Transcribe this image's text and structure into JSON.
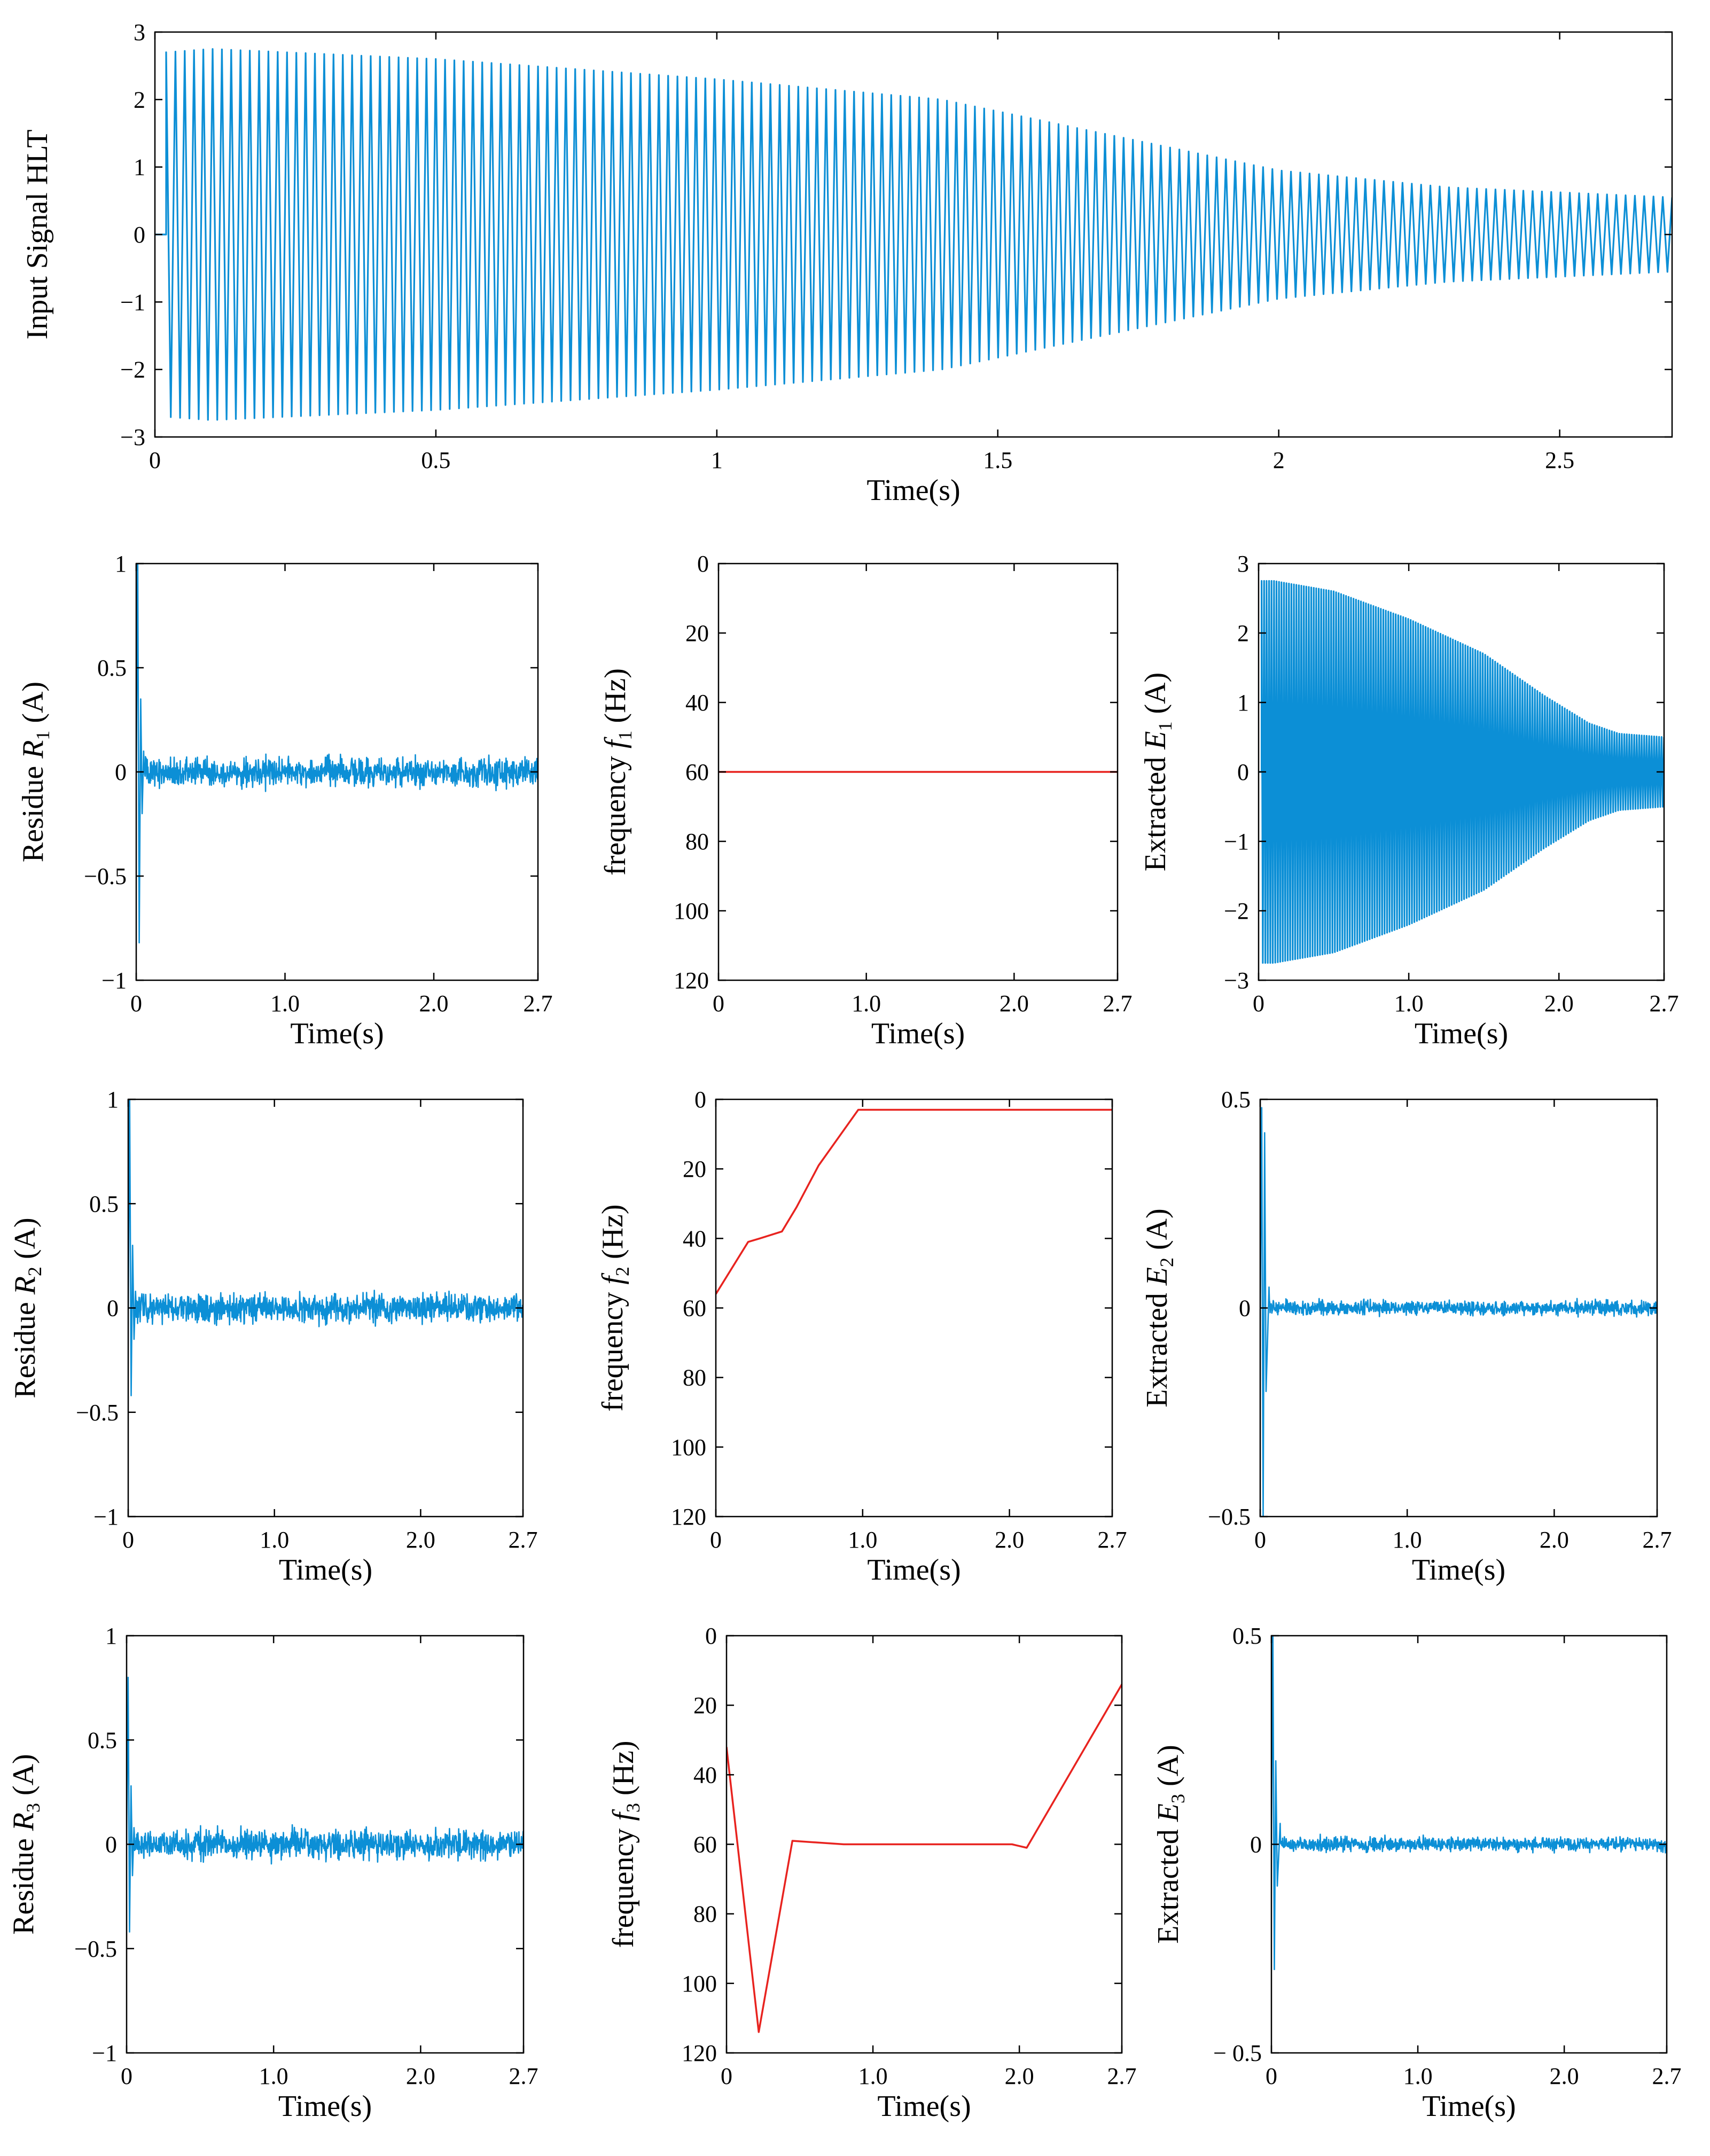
{
  "chart_data": [
    {
      "id": "input",
      "type": "line",
      "kind": "oscillation",
      "color": "#0c8fd6",
      "xlabel": "Time(s)",
      "ylabel_parts": [
        "Input Signal HLT"
      ],
      "xlim": [
        0,
        2.7
      ],
      "ylim": [
        -3,
        3
      ],
      "invert_y": false,
      "xticks": [
        0,
        0.5,
        1,
        1.5,
        2,
        2.5
      ],
      "xtick_labels": [
        "0",
        "0.5",
        "1",
        "1.5",
        "2",
        "2.5"
      ],
      "yticks": [
        -3,
        -2,
        -1,
        0,
        1,
        2,
        3
      ],
      "ytick_labels": [
        "−3",
        "−2",
        "−1",
        "0",
        "1",
        "2",
        "3"
      ],
      "envelope": {
        "t": [
          0,
          0.02,
          0.1,
          0.5,
          1.0,
          1.4,
          1.8,
          2.0,
          2.3,
          2.7
        ],
        "amp": [
          0,
          2.7,
          2.75,
          2.6,
          2.3,
          2.0,
          1.3,
          0.95,
          0.7,
          0.55
        ]
      },
      "cycles": 162
    },
    {
      "id": "r1",
      "type": "line",
      "kind": "residue",
      "color": "#0c8fd6",
      "xlabel": "Time(s)",
      "ylabel_parts": [
        "Residue ",
        "R",
        "1",
        " (A)"
      ],
      "xlim": [
        0,
        2.7
      ],
      "ylim": [
        -1,
        1
      ],
      "invert_y": false,
      "xticks": [
        0,
        1.0,
        2.0,
        2.7
      ],
      "xtick_labels": [
        "0",
        "1.0",
        "2.0",
        "2.7"
      ],
      "yticks": [
        -1,
        -0.5,
        0,
        0.5,
        1
      ],
      "ytick_labels": [
        "−1",
        "−0.5",
        "0",
        "0.5",
        "1"
      ],
      "transient": {
        "t": [
          0,
          0.01,
          0.02,
          0.03,
          0.04,
          0.05
        ],
        "v": [
          0,
          1.0,
          -0.82,
          0.35,
          -0.2,
          0.1
        ]
      },
      "noise": 0.1
    },
    {
      "id": "f1",
      "type": "line",
      "kind": "frequency",
      "color": "#e8231f",
      "xlabel": "Time(s)",
      "ylabel_parts": [
        "frequency ",
        "f",
        "1",
        " (Hz)"
      ],
      "xlim": [
        0,
        2.7
      ],
      "ylim": [
        0,
        120
      ],
      "invert_y": true,
      "xticks": [
        0,
        1.0,
        2.0,
        2.7
      ],
      "xtick_labels": [
        "0",
        "1.0",
        "2.0",
        "2.7"
      ],
      "yticks": [
        0,
        20,
        40,
        60,
        80,
        100,
        120
      ],
      "ytick_labels": [
        "0",
        "20",
        "40",
        "60",
        "80",
        "100",
        "120"
      ],
      "x": [
        0,
        2.7
      ],
      "y": [
        60,
        60
      ]
    },
    {
      "id": "e1",
      "type": "line",
      "kind": "oscillation",
      "color": "#0c8fd6",
      "xlabel": "Time(s)",
      "ylabel_parts": [
        "Extracted ",
        "E",
        "1",
        " (A)"
      ],
      "xlim": [
        0,
        2.7
      ],
      "ylim": [
        -3,
        3
      ],
      "invert_y": false,
      "xticks": [
        0,
        1.0,
        2.0,
        2.7
      ],
      "xtick_labels": [
        "0",
        "1.0",
        "2.0",
        "2.7"
      ],
      "yticks": [
        -3,
        -2,
        -1,
        0,
        1,
        2,
        3
      ],
      "ytick_labels": [
        "−3",
        "−2",
        "−1",
        "0",
        "1",
        "2",
        "3"
      ],
      "envelope": {
        "t": [
          0,
          0.02,
          0.1,
          0.5,
          1.0,
          1.5,
          1.9,
          2.2,
          2.4,
          2.7
        ],
        "amp": [
          0,
          2.75,
          2.75,
          2.6,
          2.2,
          1.7,
          1.1,
          0.7,
          0.55,
          0.5
        ]
      },
      "cycles": 162
    },
    {
      "id": "r2",
      "type": "line",
      "kind": "residue",
      "color": "#0c8fd6",
      "xlabel": "Time(s)",
      "ylabel_parts": [
        "Residue ",
        "R",
        "2",
        " (A)"
      ],
      "xlim": [
        0,
        2.7
      ],
      "ylim": [
        -1,
        1
      ],
      "invert_y": false,
      "xticks": [
        0,
        1.0,
        2.0,
        2.7
      ],
      "xtick_labels": [
        "0",
        "1.0",
        "2.0",
        "2.7"
      ],
      "yticks": [
        -1,
        -0.5,
        0,
        0.5,
        1
      ],
      "ytick_labels": [
        "−1",
        "−0.5",
        "0",
        "0.5",
        "1"
      ],
      "transient": {
        "t": [
          0,
          0.01,
          0.02,
          0.03,
          0.04,
          0.05
        ],
        "v": [
          0,
          1.0,
          -0.42,
          0.3,
          -0.15,
          0.08
        ]
      },
      "noise": 0.1
    },
    {
      "id": "f2",
      "type": "line",
      "kind": "frequency",
      "color": "#e8231f",
      "xlabel": "Time(s)",
      "ylabel_parts": [
        "frequency ",
        "f",
        "2",
        " (Hz)"
      ],
      "xlim": [
        0,
        2.7
      ],
      "ylim": [
        0,
        120
      ],
      "invert_y": true,
      "xticks": [
        0,
        1.0,
        2.0,
        2.7
      ],
      "xtick_labels": [
        "0",
        "1.0",
        "2.0",
        "2.7"
      ],
      "yticks": [
        0,
        20,
        40,
        60,
        80,
        100,
        120
      ],
      "ytick_labels": [
        "0",
        "20",
        "40",
        "60",
        "80",
        "100",
        "120"
      ],
      "x": [
        0,
        0.22,
        0.3,
        0.45,
        0.55,
        0.7,
        0.97,
        2.7
      ],
      "y": [
        56,
        41,
        40,
        38,
        31,
        19,
        3,
        3
      ]
    },
    {
      "id": "e2",
      "type": "line",
      "kind": "residue",
      "color": "#0c8fd6",
      "xlabel": "Time(s)",
      "ylabel_parts": [
        "Extracted ",
        "E",
        "2",
        " (A)"
      ],
      "xlim": [
        0,
        2.7
      ],
      "ylim": [
        -0.5,
        0.5
      ],
      "invert_y": false,
      "xticks": [
        0,
        1.0,
        2.0,
        2.7
      ],
      "xtick_labels": [
        "0",
        "1.0",
        "2.0",
        "2.7"
      ],
      "yticks": [
        -0.5,
        0,
        0.5
      ],
      "ytick_labels": [
        "−0.5",
        "0",
        "0.5"
      ],
      "transient": {
        "t": [
          0,
          0.01,
          0.02,
          0.03,
          0.04,
          0.06
        ],
        "v": [
          0,
          0.48,
          -0.5,
          0.42,
          -0.2,
          0.05
        ]
      },
      "noise": 0.025
    },
    {
      "id": "r3",
      "type": "line",
      "kind": "residue",
      "color": "#0c8fd6",
      "xlabel": "Time(s)",
      "ylabel_parts": [
        "Residue ",
        "R",
        "3",
        " (A)"
      ],
      "xlim": [
        0,
        2.7
      ],
      "ylim": [
        -1,
        1
      ],
      "invert_y": false,
      "xticks": [
        0,
        1.0,
        2.0,
        2.7
      ],
      "xtick_labels": [
        "0",
        "1.0",
        "2.0",
        "2.7"
      ],
      "yticks": [
        -1,
        -0.5,
        0,
        0.5,
        1
      ],
      "ytick_labels": [
        "−1",
        "−0.5",
        "0",
        "0.5",
        "1"
      ],
      "transient": {
        "t": [
          0,
          0.01,
          0.02,
          0.03,
          0.04,
          0.05
        ],
        "v": [
          0,
          0.8,
          -0.42,
          0.28,
          -0.15,
          0.08
        ]
      },
      "noise": 0.1
    },
    {
      "id": "f3",
      "type": "line",
      "kind": "frequency",
      "color": "#e8231f",
      "xlabel": "Time(s)",
      "ylabel_parts": [
        "frequency ",
        "f",
        "3",
        " (Hz)"
      ],
      "xlim": [
        0,
        2.7
      ],
      "ylim": [
        0,
        120
      ],
      "invert_y": true,
      "xticks": [
        0,
        1.0,
        2.0,
        2.7
      ],
      "xtick_labels": [
        "0",
        "1.0",
        "2.0",
        "2.7"
      ],
      "yticks": [
        0,
        20,
        40,
        60,
        80,
        100,
        120
      ],
      "ytick_labels": [
        "0",
        "20",
        "40",
        "60",
        "80",
        "100",
        "120"
      ],
      "x": [
        0,
        0.22,
        0.45,
        0.8,
        1.95,
        2.05,
        2.7
      ],
      "y": [
        32,
        114,
        59,
        60,
        60,
        61,
        14
      ]
    },
    {
      "id": "e3",
      "type": "line",
      "kind": "residue",
      "color": "#0c8fd6",
      "xlabel": "Time(s)",
      "ylabel_parts": [
        "Extracted ",
        "E",
        "3",
        " (A)"
      ],
      "xlim": [
        0,
        2.7
      ],
      "ylim": [
        -0.5,
        0.5
      ],
      "invert_y": false,
      "xticks": [
        0,
        1.0,
        2.0,
        2.7
      ],
      "xtick_labels": [
        "0",
        "1.0",
        "2.0",
        "2.7"
      ],
      "yticks": [
        -0.5,
        0,
        0.5
      ],
      "ytick_labels": [
        "− 0.5",
        "0",
        "0.5"
      ],
      "transient": {
        "t": [
          0,
          0.01,
          0.02,
          0.03,
          0.04,
          0.06
        ],
        "v": [
          0,
          0.5,
          -0.3,
          0.2,
          -0.1,
          0.05
        ]
      },
      "noise": 0.025
    }
  ]
}
